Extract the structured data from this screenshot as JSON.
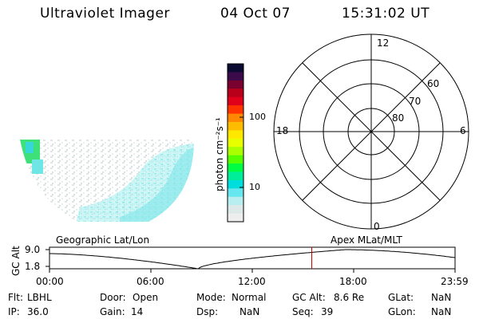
{
  "header": {
    "instrument": "Ultraviolet Imager",
    "date": "04 Oct 07",
    "time": "15:31:02 UT"
  },
  "colorbar": {
    "unit_label": "photon cm⁻²s⁻¹",
    "ticks": [
      "100",
      "10"
    ],
    "colors": [
      "#0a0a33",
      "#3a0a4a",
      "#7a0030",
      "#b8001a",
      "#e0001a",
      "#ff3300",
      "#ff8800",
      "#ffbb00",
      "#ffe800",
      "#e8ff00",
      "#aaff00",
      "#55ff00",
      "#00ff44",
      "#00ee99",
      "#00dddd",
      "#66e6ee",
      "#b8eef0",
      "#dde8e8",
      "#eeeeee"
    ]
  },
  "polar": {
    "mlt_labels": {
      "top": "12",
      "left": "18",
      "right": "6",
      "bottom": "0"
    },
    "lat_labels": [
      "60",
      "70",
      "80"
    ]
  },
  "map": {
    "left_label": "Geographic Lat/Lon",
    "right_label": "Apex MLat/MLT"
  },
  "altitude_plot": {
    "ylabel": "GC Alt",
    "y_ticks": [
      "9.0",
      "1.8"
    ],
    "x_ticks": [
      "00:00",
      "06:00",
      "12:00",
      "18:00",
      "23:59"
    ],
    "current_time_marker_hour": 15.52,
    "line_color": "#000000",
    "marker_color": "#cc0000"
  },
  "status": {
    "row1": [
      {
        "label": "Flt:",
        "value": "LBHL"
      },
      {
        "label": "Door:",
        "value": "Open"
      },
      {
        "label": "Mode:",
        "value": "Normal"
      },
      {
        "label": "GC Alt:",
        "value": "8.6 Re"
      },
      {
        "label": "GLat:",
        "value": "NaN"
      }
    ],
    "row2": [
      {
        "label": "IP:",
        "value": "36.0"
      },
      {
        "label": "Gain:",
        "value": "14"
      },
      {
        "label": "Dsp:",
        "value": "NaN"
      },
      {
        "label": "Seq:",
        "value": "39"
      },
      {
        "label": "GLon:",
        "value": "NaN"
      }
    ]
  }
}
